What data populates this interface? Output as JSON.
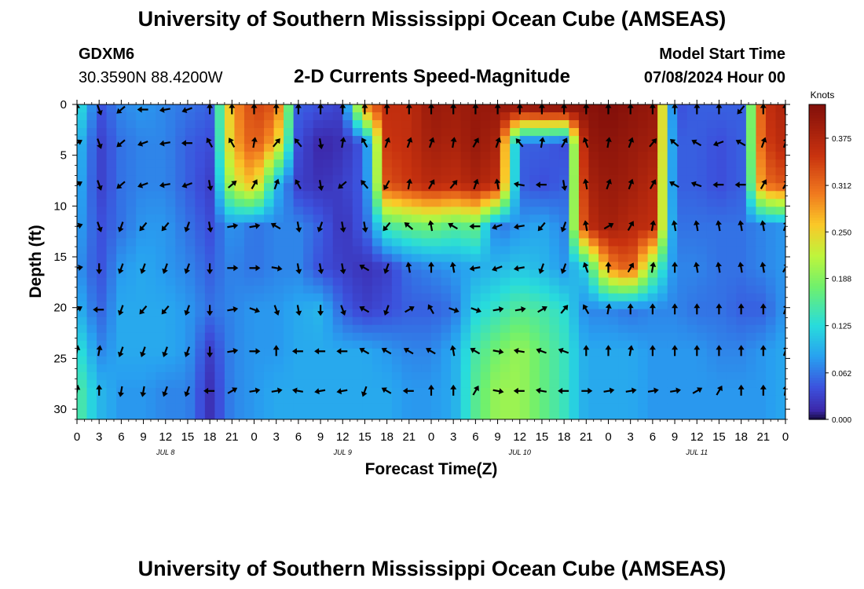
{
  "header": {
    "title": "University of Southern Mississippi Ocean Cube (AMSEAS)",
    "station_id": "GDXM6",
    "coords": "30.3590N  88.4200W",
    "plot_title": "2-D Currents Speed-Magnitude",
    "model_label": "Model Start Time",
    "model_start": "07/08/2024 Hour 00"
  },
  "footer": {
    "title": "University of Southern Mississippi Ocean Cube (AMSEAS)"
  },
  "colors": {
    "low": "#3b45c8",
    "mid": "#7cf060",
    "high": "#9c1a0a",
    "arrow": "#000000"
  },
  "chart_data": {
    "type": "heatmap",
    "title": "2-D Currents Speed-Magnitude",
    "xlabel": "Forecast Time(Z)",
    "ylabel": "Depth (ft)",
    "xlim": [
      0,
      96
    ],
    "ylim": [
      31,
      0
    ],
    "xticks": [
      0,
      3,
      6,
      9,
      12,
      15,
      18,
      21,
      24,
      27,
      30,
      33,
      36,
      39,
      42,
      45,
      48,
      51,
      54,
      57,
      60,
      63,
      66,
      69,
      72,
      75,
      78,
      81,
      84,
      87,
      90,
      93,
      96
    ],
    "xtick_labels": [
      "0",
      "3",
      "6",
      "9",
      "12",
      "15",
      "18",
      "21",
      "0",
      "3",
      "6",
      "9",
      "12",
      "15",
      "18",
      "21",
      "0",
      "3",
      "6",
      "9",
      "12",
      "15",
      "18",
      "21",
      "0",
      "3",
      "6",
      "9",
      "12",
      "15",
      "18",
      "21",
      "0"
    ],
    "day_labels": [
      {
        "text": "JUL 8",
        "x": 12
      },
      {
        "text": "JUL 9",
        "x": 36
      },
      {
        "text": "JUL 10",
        "x": 60
      },
      {
        "text": "JUL 11",
        "x": 84
      }
    ],
    "yticks": [
      0,
      5,
      10,
      15,
      20,
      25,
      30
    ],
    "ytick_labels": [
      "0",
      "5",
      "10",
      "15",
      "20",
      "25",
      "30"
    ],
    "colorbar": {
      "label": "Knots",
      "min": 0.0,
      "max": 0.42,
      "ticks": [
        0.0,
        0.062,
        0.125,
        0.188,
        0.25,
        0.312,
        0.375
      ],
      "tick_labels": [
        "0.000",
        "0.062",
        "0.125",
        "0.188",
        "0.250",
        "0.312",
        "0.375"
      ]
    },
    "depths": [
      0.5,
      3.8,
      7.9,
      12.0,
      16.1,
      20.2,
      24.3,
      28.2
    ],
    "times": [
      0,
      3,
      6,
      9,
      12,
      15,
      18,
      21,
      24,
      27,
      30,
      33,
      36,
      39,
      42,
      45,
      48,
      51,
      54,
      57,
      60,
      63,
      66,
      69,
      72,
      75,
      78,
      81,
      84,
      87,
      90,
      93,
      96
    ],
    "speed": [
      [
        0.14,
        0.04,
        0.07,
        0.08,
        0.07,
        0.06,
        0.05,
        0.28,
        0.34,
        0.32,
        0.05,
        0.04,
        0.03,
        0.28,
        0.36,
        0.36,
        0.4,
        0.39,
        0.4,
        0.4,
        0.39,
        0.4,
        0.4,
        0.41,
        0.42,
        0.41,
        0.4,
        0.04,
        0.05,
        0.05,
        0.05,
        0.35,
        0.38
      ],
      [
        0.11,
        0.03,
        0.06,
        0.07,
        0.07,
        0.05,
        0.04,
        0.27,
        0.33,
        0.27,
        0.04,
        0.01,
        0.02,
        0.05,
        0.35,
        0.36,
        0.39,
        0.38,
        0.4,
        0.38,
        0.05,
        0.05,
        0.04,
        0.4,
        0.41,
        0.4,
        0.39,
        0.05,
        0.05,
        0.04,
        0.05,
        0.34,
        0.37
      ],
      [
        0.1,
        0.03,
        0.06,
        0.07,
        0.07,
        0.05,
        0.03,
        0.22,
        0.27,
        0.1,
        0.03,
        0.02,
        0.03,
        0.05,
        0.33,
        0.35,
        0.37,
        0.36,
        0.38,
        0.36,
        0.05,
        0.04,
        0.05,
        0.38,
        0.4,
        0.39,
        0.37,
        0.05,
        0.05,
        0.04,
        0.05,
        0.31,
        0.33
      ],
      [
        0.09,
        0.04,
        0.06,
        0.08,
        0.08,
        0.06,
        0.04,
        0.08,
        0.06,
        0.07,
        0.07,
        0.05,
        0.02,
        0.05,
        0.15,
        0.17,
        0.18,
        0.16,
        0.17,
        0.06,
        0.08,
        0.09,
        0.07,
        0.36,
        0.39,
        0.37,
        0.36,
        0.06,
        0.06,
        0.06,
        0.06,
        0.07,
        0.08
      ],
      [
        0.08,
        0.04,
        0.08,
        0.09,
        0.08,
        0.07,
        0.05,
        0.07,
        0.06,
        0.07,
        0.07,
        0.04,
        0.03,
        0.02,
        0.03,
        0.06,
        0.07,
        0.08,
        0.09,
        0.1,
        0.11,
        0.1,
        0.08,
        0.12,
        0.29,
        0.33,
        0.18,
        0.07,
        0.07,
        0.06,
        0.06,
        0.07,
        0.08
      ],
      [
        0.1,
        0.05,
        0.09,
        0.09,
        0.09,
        0.08,
        0.06,
        0.07,
        0.08,
        0.08,
        0.09,
        0.1,
        0.05,
        0.03,
        0.04,
        0.05,
        0.05,
        0.06,
        0.12,
        0.14,
        0.16,
        0.15,
        0.13,
        0.07,
        0.07,
        0.06,
        0.07,
        0.07,
        0.06,
        0.06,
        0.05,
        0.05,
        0.08
      ],
      [
        0.14,
        0.07,
        0.09,
        0.09,
        0.09,
        0.08,
        0.03,
        0.07,
        0.08,
        0.08,
        0.09,
        0.09,
        0.09,
        0.09,
        0.08,
        0.07,
        0.07,
        0.09,
        0.15,
        0.18,
        0.2,
        0.17,
        0.14,
        0.09,
        0.09,
        0.09,
        0.08,
        0.08,
        0.08,
        0.07,
        0.07,
        0.08,
        0.09
      ],
      [
        0.16,
        0.1,
        0.08,
        0.08,
        0.07,
        0.07,
        0.02,
        0.07,
        0.08,
        0.09,
        0.09,
        0.09,
        0.09,
        0.09,
        0.09,
        0.08,
        0.08,
        0.09,
        0.16,
        0.2,
        0.2,
        0.17,
        0.14,
        0.09,
        0.09,
        0.09,
        0.08,
        0.08,
        0.08,
        0.08,
        0.08,
        0.08,
        0.09
      ]
    ],
    "direction_deg": [
      [
        0,
        160,
        230,
        270,
        260,
        250,
        0,
        0,
        0,
        0,
        0,
        0,
        0,
        0,
        0,
        0,
        0,
        0,
        0,
        0,
        0,
        0,
        0,
        0,
        0,
        0,
        0,
        0,
        0,
        0,
        220,
        0,
        0
      ],
      [
        60,
        160,
        230,
        250,
        260,
        270,
        330,
        330,
        10,
        40,
        320,
        170,
        10,
        330,
        20,
        20,
        20,
        10,
        30,
        20,
        320,
        10,
        30,
        340,
        10,
        20,
        40,
        310,
        300,
        250,
        300,
        20,
        20
      ],
      [
        60,
        160,
        230,
        250,
        260,
        250,
        170,
        50,
        30,
        20,
        330,
        170,
        230,
        320,
        210,
        10,
        30,
        40,
        20,
        350,
        280,
        270,
        170,
        350,
        20,
        20,
        30,
        300,
        290,
        270,
        270,
        30,
        30
      ],
      [
        70,
        160,
        200,
        220,
        220,
        200,
        170,
        80,
        80,
        300,
        170,
        200,
        170,
        170,
        220,
        310,
        350,
        300,
        270,
        250,
        260,
        220,
        200,
        350,
        60,
        30,
        10,
        350,
        350,
        350,
        350,
        350,
        20
      ],
      [
        80,
        180,
        200,
        200,
        200,
        200,
        180,
        90,
        90,
        100,
        170,
        170,
        170,
        300,
        200,
        350,
        0,
        350,
        260,
        250,
        260,
        200,
        200,
        340,
        0,
        30,
        10,
        0,
        350,
        350,
        350,
        350,
        30
      ],
      [
        60,
        270,
        200,
        220,
        220,
        200,
        180,
        80,
        110,
        160,
        170,
        180,
        160,
        300,
        200,
        60,
        330,
        110,
        110,
        80,
        80,
        60,
        40,
        330,
        10,
        0,
        0,
        0,
        0,
        0,
        0,
        0,
        20
      ],
      [
        10,
        10,
        200,
        200,
        200,
        200,
        180,
        80,
        90,
        0,
        270,
        270,
        270,
        300,
        300,
        300,
        300,
        350,
        300,
        100,
        280,
        290,
        290,
        0,
        0,
        10,
        0,
        0,
        0,
        0,
        0,
        0,
        20
      ],
      [
        10,
        0,
        190,
        190,
        200,
        200,
        270,
        60,
        80,
        80,
        280,
        260,
        260,
        200,
        300,
        270,
        0,
        0,
        30,
        100,
        270,
        280,
        270,
        90,
        80,
        80,
        80,
        80,
        60,
        30,
        0,
        0,
        10
      ]
    ]
  }
}
